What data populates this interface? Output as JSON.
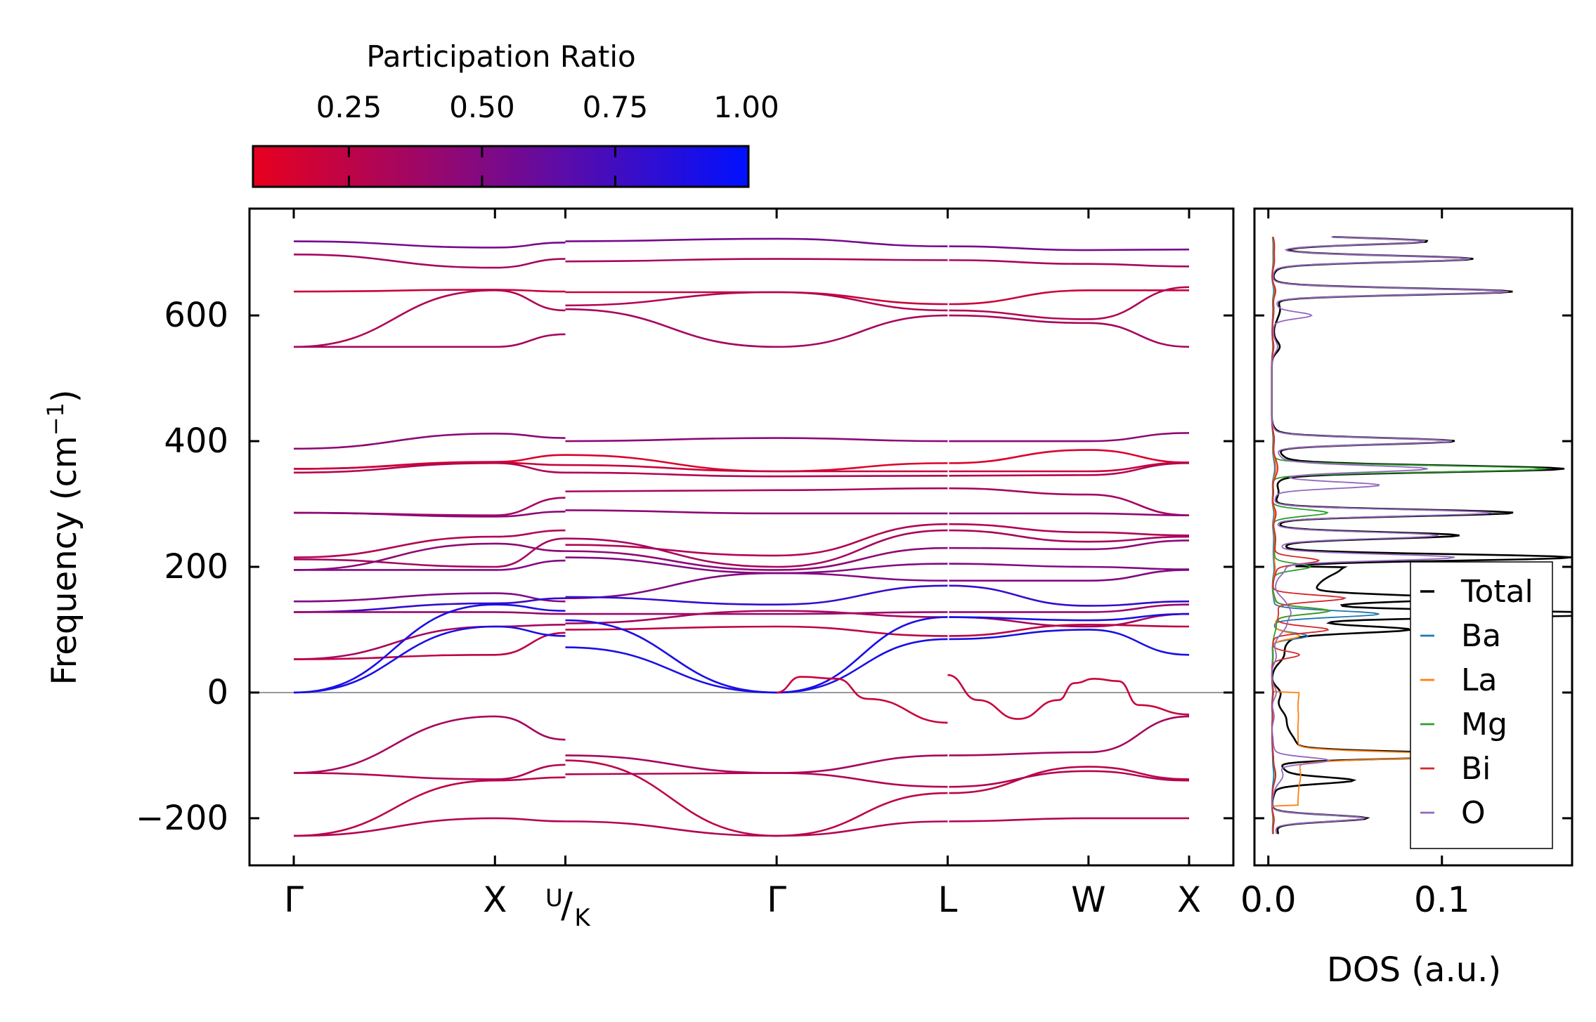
{
  "chart_data": [
    {
      "type": "line",
      "subtype": "phonon-band-structure",
      "ylabel": "Frequency (cm",
      "ylabel_sup": "−1",
      "ylabel_tail": ")",
      "ylim": [
        -275,
        770
      ],
      "yticks": [
        -200,
        0,
        200,
        400,
        600
      ],
      "ytick_labels": [
        "−200",
        "0",
        "200",
        "400",
        "600"
      ],
      "kpoints": [
        0,
        1.0,
        1.35,
        2.4,
        3.25,
        3.95,
        4.45
      ],
      "kpoint_labels": [
        "Γ",
        "X",
        "U",
        "K",
        "Γ",
        "L",
        "W",
        "X"
      ],
      "zero_line": true,
      "colorbar": {
        "title": "Participation Ratio",
        "range": [
          0.07,
          1.0
        ],
        "ticks": [
          0.25,
          0.5,
          0.75
        ],
        "end_label": "1.00",
        "tick_labels": [
          "0.25",
          "0.50",
          "0.75"
        ],
        "color_low": "#e8001e",
        "color_mid": "#7a0a8a",
        "color_high": "#0010ff"
      },
      "bands": [
        {
          "pr": 0.55,
          "y": [
            718,
            708,
            716,
            718,
            722,
            710,
            704,
            705
          ]
        },
        {
          "pr": 0.35,
          "y": [
            697,
            676,
            690,
            686,
            690,
            688,
            682,
            678
          ]
        },
        {
          "pr": 0.2,
          "y": [
            638,
            641,
            638,
            637,
            637,
            618,
            640,
            640
          ]
        },
        {
          "pr": 0.3,
          "y": [
            550,
            640,
            608,
            616,
            637,
            608,
            594,
            645
          ]
        },
        {
          "pr": 0.35,
          "y": [
            550,
            550,
            570,
            610,
            550,
            600,
            588,
            550
          ]
        },
        {
          "pr": 0.45,
          "y": [
            388,
            412,
            405,
            400,
            405,
            400,
            400,
            413
          ]
        },
        {
          "pr": 0.12,
          "y": [
            356,
            367,
            378,
            378,
            352,
            365,
            386,
            366
          ]
        },
        {
          "pr": 0.2,
          "y": [
            356,
            366,
            362,
            362,
            352,
            352,
            352,
            366
          ]
        },
        {
          "pr": 0.3,
          "y": [
            350,
            365,
            350,
            350,
            344,
            345,
            346,
            365
          ]
        },
        {
          "pr": 0.35,
          "y": [
            286,
            282,
            310,
            320,
            322,
            325,
            315,
            282
          ]
        },
        {
          "pr": 0.45,
          "y": [
            286,
            280,
            288,
            290,
            285,
            285,
            285,
            282
          ]
        },
        {
          "pr": 0.3,
          "y": [
            215,
            248,
            258,
            235,
            218,
            268,
            255,
            250
          ]
        },
        {
          "pr": 0.35,
          "y": [
            212,
            200,
            245,
            245,
            200,
            258,
            240,
            248
          ]
        },
        {
          "pr": 0.45,
          "y": [
            195,
            237,
            225,
            225,
            195,
            230,
            228,
            242
          ]
        },
        {
          "pr": 0.5,
          "y": [
            195,
            195,
            210,
            215,
            190,
            205,
            200,
            196
          ]
        },
        {
          "pr": 0.5,
          "y": [
            145,
            158,
            145,
            150,
            190,
            178,
            178,
            195
          ]
        },
        {
          "pr": 0.8,
          "y": [
            128,
            142,
            150,
            152,
            140,
            170,
            138,
            145
          ]
        },
        {
          "pr": 0.4,
          "y": [
            128,
            128,
            125,
            125,
            125,
            128,
            128,
            140
          ]
        },
        {
          "pr": 0.35,
          "y": [
            53,
            105,
            108,
            110,
            130,
            120,
            105,
            125
          ]
        },
        {
          "pr": 0.25,
          "y": [
            53,
            60,
            95,
            100,
            105,
            90,
            108,
            105
          ]
        },
        {
          "pr": 0.9,
          "y": [
            0,
            140,
            130,
            115,
            0,
            120,
            115,
            125
          ]
        },
        {
          "pr": 0.9,
          "y": [
            0,
            105,
            90,
            72,
            0,
            85,
            100,
            60
          ]
        },
        {
          "pr": 0.35,
          "y": [
            -128,
            -38,
            -75,
            -100,
            -128,
            -100,
            -95,
            -38
          ]
        },
        {
          "pr": 0.25,
          "y": [
            -228,
            -140,
            -135,
            -108,
            -228,
            -160,
            -118,
            -138
          ]
        },
        {
          "pr": 0.3,
          "y": [
            -228,
            -200,
            -205,
            -205,
            -228,
            -205,
            -200,
            -200
          ]
        },
        {
          "pr": 0.3,
          "y": [
            -128,
            -138,
            -115,
            -130,
            -128,
            -150,
            -125,
            -140
          ]
        }
      ],
      "soft_modes": [
        {
          "pr": 0.2,
          "segment": "Γ-L",
          "points": [
            [
              2.4,
              0
            ],
            [
              2.52,
              25
            ],
            [
              2.7,
              22
            ],
            [
              2.85,
              -10
            ],
            [
              3.25,
              -48
            ]
          ]
        },
        {
          "pr": 0.2,
          "segment": "L-W-X",
          "points": [
            [
              3.25,
              28
            ],
            [
              3.4,
              -12
            ],
            [
              3.6,
              -42
            ],
            [
              3.8,
              -12
            ],
            [
              3.88,
              15
            ],
            [
              3.98,
              22
            ],
            [
              4.1,
              18
            ],
            [
              4.2,
              -20
            ],
            [
              4.45,
              -35
            ]
          ]
        }
      ]
    },
    {
      "type": "line",
      "subtype": "density-of-states",
      "xlabel": "DOS (a.u.)",
      "xlim": [
        -0.008,
        0.175
      ],
      "xticks": [
        0.0,
        0.1
      ],
      "xtick_labels": [
        "0.0",
        "0.1"
      ],
      "ylim": [
        -275,
        770
      ],
      "legend": {
        "position": "lower-right"
      },
      "series": [
        {
          "name": "Total",
          "color": "#000000",
          "width": 2.6
        },
        {
          "name": "Ba",
          "color": "#1f77b4",
          "width": 1.8
        },
        {
          "name": "La",
          "color": "#ff7f0e",
          "width": 1.8
        },
        {
          "name": "Mg",
          "color": "#2ca02c",
          "width": 1.8
        },
        {
          "name": "Bi",
          "color": "#d62728",
          "width": 1.8
        },
        {
          "name": "O",
          "color": "#9467bd",
          "width": 1.8
        }
      ]
    }
  ]
}
